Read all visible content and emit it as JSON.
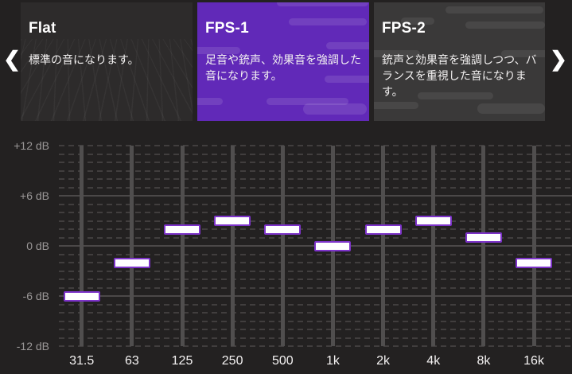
{
  "icons": {
    "chevron_left": "❮",
    "chevron_right": "❯"
  },
  "carousel": {
    "presets": [
      {
        "title": "Flat",
        "description": "標準の音になります。",
        "selected": false
      },
      {
        "title": "FPS-1",
        "description": "足音や銃声、効果音を強調した音になります。",
        "selected": true
      },
      {
        "title": "FPS-2",
        "description": "銃声と効果音を強調しつつ、バランスを重視した音になります。",
        "selected": false
      }
    ]
  },
  "colors": {
    "background": "#232121",
    "accent_purple": "#6129b8",
    "handle_border": "#7d33c9",
    "grid_major": "#4b4848",
    "grid_minor": "#413e3e",
    "slider_track": "#504e4e",
    "axis_label": "#9a9797",
    "freq_label": "#f4f2f2"
  },
  "chart_data": {
    "type": "equalizer-sliders",
    "title": "FPS-1 equalizer preset",
    "categories": [
      "31.5",
      "63",
      "125",
      "250",
      "500",
      "1k",
      "2k",
      "4k",
      "8k",
      "16k"
    ],
    "values": [
      -6,
      -2,
      2,
      3,
      2,
      0,
      2,
      3,
      1,
      -2
    ],
    "unit": "dB",
    "ylim": [
      -12,
      12
    ],
    "y_tick_values": [
      12,
      6,
      0,
      -6,
      -12
    ],
    "y_tick_labels": [
      "+12 dB",
      "+6 dB",
      "0 dB",
      "-6 dB",
      "-12 dB"
    ],
    "solid_gridlines_db": [
      6,
      0,
      -6
    ],
    "minor_step_db": 1
  }
}
